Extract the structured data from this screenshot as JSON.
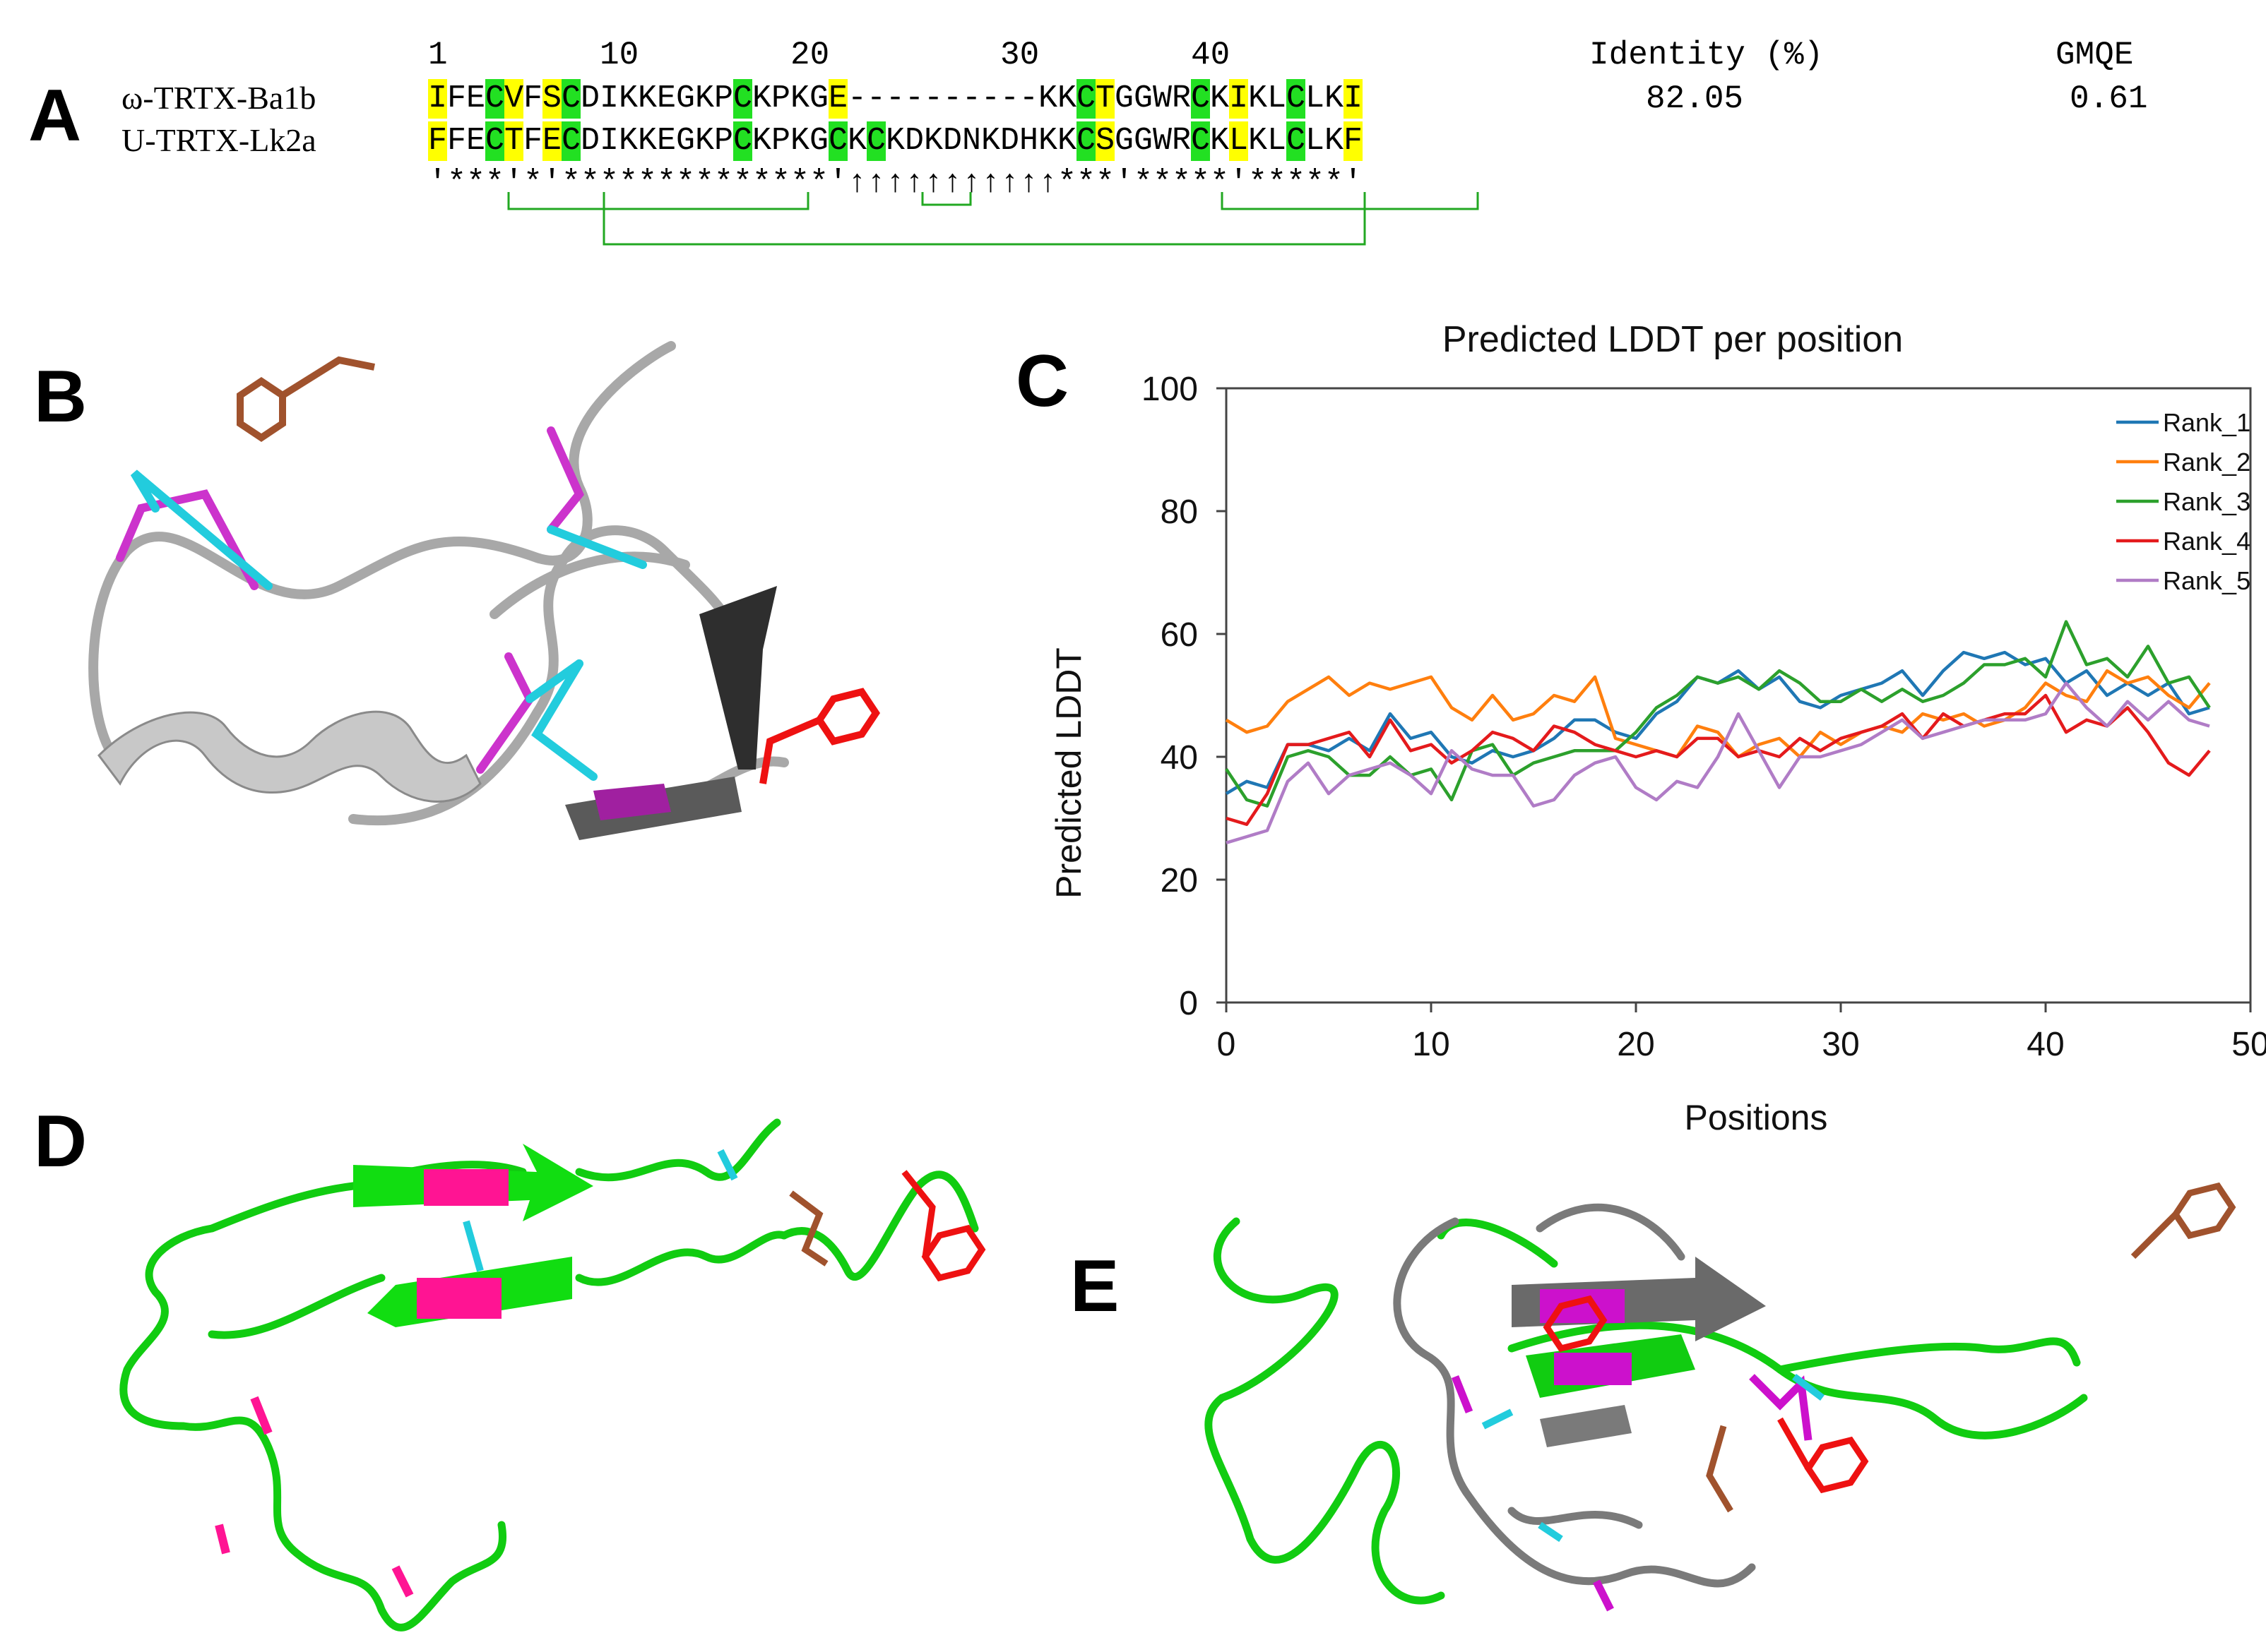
{
  "panels": {
    "a": "A",
    "b": "B",
    "c": "C",
    "d": "D",
    "e": "E"
  },
  "alignment": {
    "position_numbers": [
      "1",
      "10",
      "20",
      "30",
      "40"
    ],
    "identity_header": "Identity (%)",
    "gmqe_header": "GMQE",
    "sequences": [
      {
        "name": "ω-TRTX-Ba1b",
        "residues": "IFECVFSCDIKKEGKPCKPKGE----------KKCTGGWRCKIKLCLKI",
        "yellow": [
          0,
          4,
          6,
          21,
          35,
          42,
          48
        ],
        "green": [
          3,
          7,
          16,
          34,
          40,
          45
        ],
        "identity": "82.05",
        "gmqe": "0.61"
      },
      {
        "name": "U-TRTX-Lk2a",
        "residues": "FFECTFECDIKKEGKPCKPKGCKCKDKDNKDHKKCSGGWRCKLKLCLKF",
        "yellow": [
          0,
          4,
          6,
          35,
          42,
          48
        ],
        "green": [
          3,
          7,
          16,
          21,
          23,
          34,
          40,
          45
        ],
        "identity": "",
        "gmqe": ""
      }
    ],
    "conservation": "'***'*'**************'↑↑↑↑↑↑↑↑↑↑↑***'*****'*****'"
  },
  "chart_data": {
    "type": "line",
    "title": "Predicted LDDT per position",
    "xlabel": "Positions",
    "ylabel": "Predicted LDDT",
    "xlim": [
      0,
      50
    ],
    "ylim": [
      0,
      100
    ],
    "xticks": [
      "0",
      "10",
      "20",
      "30",
      "40",
      "50"
    ],
    "yticks": [
      "0",
      "20",
      "40",
      "60",
      "80",
      "100"
    ],
    "legend_position": "top-right",
    "series": [
      {
        "name": "Rank_1",
        "color": "#1f77b4",
        "values": [
          34,
          36,
          35,
          42,
          42,
          41,
          43,
          41,
          47,
          43,
          44,
          40,
          39,
          41,
          40,
          41,
          43,
          46,
          46,
          44,
          43,
          47,
          49,
          53,
          52,
          54,
          51,
          53,
          49,
          48,
          50,
          51,
          52,
          54,
          50,
          54,
          57,
          56,
          57,
          55,
          56,
          52,
          54,
          50,
          52,
          50,
          52,
          47,
          48
        ]
      },
      {
        "name": "Rank_2",
        "color": "#ff7f0e",
        "values": [
          46,
          44,
          45,
          49,
          51,
          53,
          50,
          52,
          51,
          52,
          53,
          48,
          46,
          50,
          46,
          47,
          50,
          49,
          53,
          43,
          42,
          41,
          40,
          45,
          44,
          40,
          42,
          43,
          40,
          44,
          42,
          44,
          45,
          44,
          47,
          46,
          47,
          45,
          46,
          48,
          52,
          50,
          49,
          54,
          52,
          53,
          50,
          48,
          52
        ]
      },
      {
        "name": "Rank_3",
        "color": "#2ca02c",
        "values": [
          38,
          33,
          32,
          40,
          41,
          40,
          37,
          37,
          40,
          37,
          38,
          33,
          41,
          42,
          37,
          39,
          40,
          41,
          41,
          41,
          44,
          48,
          50,
          53,
          52,
          53,
          51,
          54,
          52,
          49,
          49,
          51,
          49,
          51,
          49,
          50,
          52,
          55,
          55,
          56,
          53,
          62,
          55,
          56,
          53,
          58,
          52,
          53,
          48
        ]
      },
      {
        "name": "Rank_4",
        "color": "#e41a1c",
        "values": [
          30,
          29,
          34,
          42,
          42,
          43,
          44,
          40,
          46,
          41,
          42,
          39,
          41,
          44,
          43,
          41,
          45,
          44,
          42,
          41,
          40,
          41,
          40,
          43,
          43,
          40,
          41,
          40,
          43,
          41,
          43,
          44,
          45,
          47,
          43,
          47,
          45,
          46,
          47,
          47,
          50,
          44,
          46,
          45,
          48,
          44,
          39,
          37,
          41
        ]
      },
      {
        "name": "Rank_5",
        "color": "#b07cc6",
        "values": [
          26,
          27,
          28,
          36,
          39,
          34,
          37,
          38,
          39,
          37,
          34,
          41,
          38,
          37,
          37,
          32,
          33,
          37,
          39,
          40,
          35,
          33,
          36,
          35,
          40,
          47,
          41,
          35,
          40,
          40,
          41,
          42,
          44,
          46,
          43,
          44,
          45,
          46,
          46,
          46,
          47,
          52,
          48,
          45,
          49,
          46,
          49,
          46,
          45
        ]
      }
    ]
  }
}
